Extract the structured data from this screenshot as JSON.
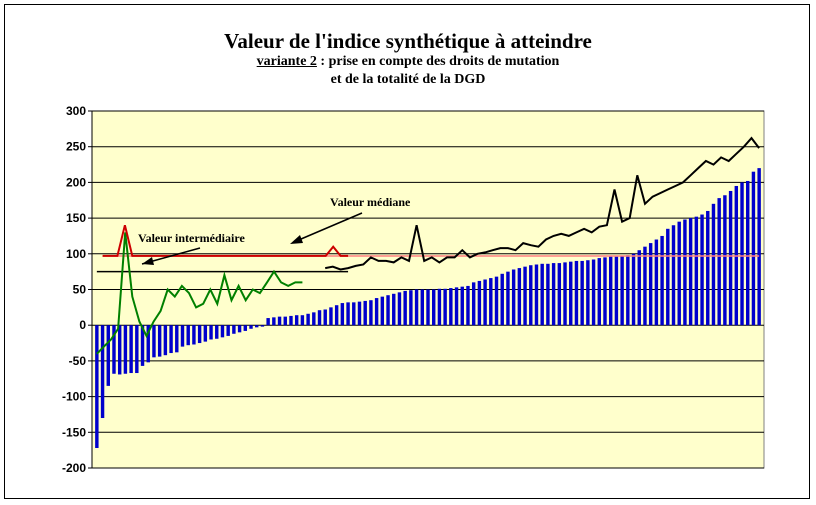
{
  "title": "Valeur de l'indice synthétique à atteindre",
  "subtitle_line1_underlined": "variante 2",
  "subtitle_line1_rest": " : prise en compte des droits de mutation",
  "subtitle_line2": "et de la totalité de la DGD",
  "chart_data": {
    "type": "bar",
    "ylim": [
      -200,
      300
    ],
    "yticks": [
      "300",
      "250",
      "200",
      "150",
      "100",
      "50",
      "0",
      "-50",
      "-100",
      "-150",
      "-200"
    ],
    "ytick_values": [
      300,
      250,
      200,
      150,
      100,
      50,
      0,
      -50,
      -100,
      -150,
      -200
    ],
    "grid": true,
    "background": "#ffffcc",
    "bar_color": "#0000cc",
    "annotations": {
      "intermediate_label": "Valeur intermédiaire",
      "median_label": "Valeur médiane"
    },
    "median_value": 97,
    "intermediate_value": 75,
    "bars": [
      -172,
      -130,
      -85,
      -68,
      -69,
      -68,
      -67,
      -67,
      -57,
      -52,
      -45,
      -44,
      -42,
      -39,
      -38,
      -30,
      -28,
      -27,
      -25,
      -23,
      -20,
      -19,
      -17,
      -15,
      -12,
      -10,
      -8,
      -5,
      -3,
      -2,
      10,
      11,
      12,
      12,
      13,
      14,
      14,
      16,
      18,
      21,
      22,
      25,
      28,
      31,
      32,
      32,
      33,
      34,
      35,
      38,
      40,
      42,
      44,
      46,
      48,
      49,
      50,
      50,
      50,
      50,
      51,
      51,
      52,
      53,
      54,
      55,
      60,
      62,
      64,
      66,
      68,
      72,
      75,
      78,
      80,
      82,
      84,
      85,
      86,
      86,
      87,
      87,
      88,
      89,
      90,
      90,
      91,
      92,
      94,
      95,
      96,
      96,
      97,
      98,
      100,
      105,
      110,
      115,
      120,
      125,
      135,
      140,
      145,
      148,
      150,
      152,
      155,
      160,
      170,
      178,
      182,
      188,
      195,
      200,
      202,
      215,
      220
    ],
    "series": [
      {
        "color": "#008000",
        "values": [
          -40,
          -30,
          -20,
          -5,
          130,
          40,
          5,
          -15,
          5,
          20,
          50,
          40,
          55,
          45,
          25,
          30,
          50,
          30,
          70,
          35,
          55,
          35,
          50,
          45,
          60,
          75,
          60,
          55,
          60,
          60
        ]
      },
      {
        "color": "#cc0000",
        "values": [
          97,
          97,
          97,
          140,
          97,
          97,
          97,
          97,
          97,
          97,
          97,
          97,
          97,
          97,
          97,
          97,
          97,
          97,
          97,
          97,
          97,
          97,
          97,
          97,
          97,
          97,
          97,
          97,
          97,
          97,
          97,
          110,
          97,
          97
        ]
      },
      {
        "color": "#000000",
        "values": [
          80,
          82,
          78,
          80,
          83,
          85,
          95,
          90,
          90,
          88,
          95,
          90,
          140,
          90,
          95,
          88,
          95,
          95,
          105,
          95,
          100,
          102,
          105,
          108,
          108,
          105,
          115,
          112,
          110,
          120,
          125,
          128,
          125,
          130,
          135,
          130,
          138,
          140,
          190,
          145,
          150,
          210,
          170,
          180,
          185,
          190,
          195,
          200,
          210,
          220,
          230,
          225,
          235,
          230,
          240,
          250,
          262,
          248
        ]
      }
    ]
  }
}
